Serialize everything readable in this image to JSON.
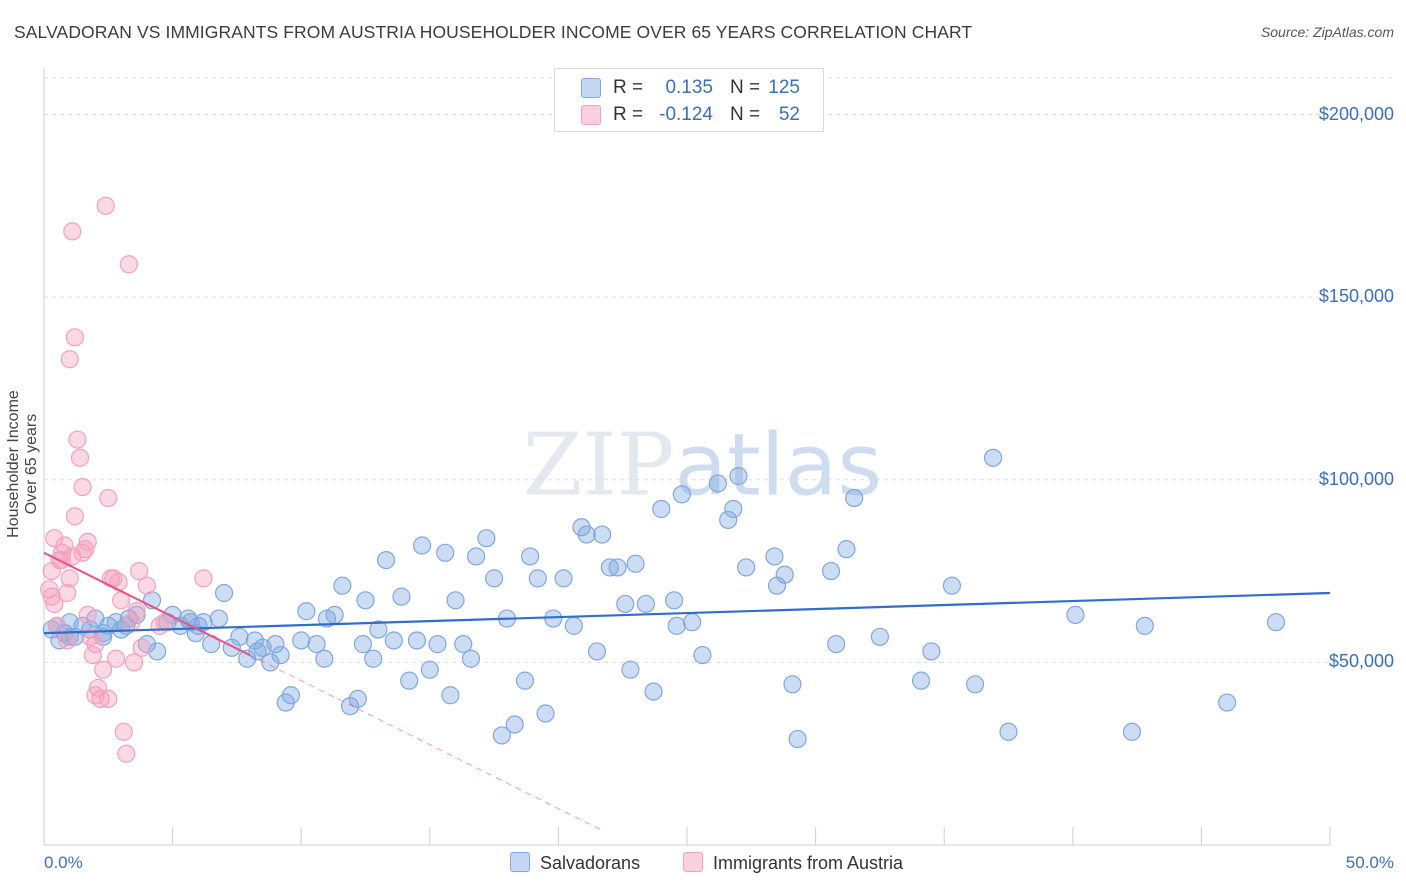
{
  "chart_data": {
    "type": "scatter",
    "title": "SALVADORAN VS IMMIGRANTS FROM AUSTRIA HOUSEHOLDER INCOME OVER 65 YEARS CORRELATION CHART",
    "source": "Source: ZipAtlas.com",
    "ylabel": "Householder Income Over 65 years",
    "xlim": [
      0,
      50
    ],
    "ylim": [
      0,
      210000
    ],
    "x_tick_labels": [
      "0.0%",
      "50.0%"
    ],
    "y_ticks": [
      50000,
      100000,
      150000,
      200000
    ],
    "y_tick_labels": [
      "$50,000",
      "$100,000",
      "$150,000",
      "$200,000"
    ],
    "watermark": "ZIPatlas",
    "legend": {
      "rows": [
        {
          "r_label": "R =",
          "r_value": "0.135",
          "n_label": "N =",
          "n_value": "125"
        },
        {
          "r_label": "R =",
          "r_value": "-0.124",
          "n_label": "N =",
          "n_value": "52"
        }
      ]
    },
    "series": [
      {
        "name": "Salvadorans",
        "color": "#7fa8e0",
        "line_color": "#2f6fc9",
        "trend": {
          "x0": 0,
          "y0": 58000,
          "x1": 50,
          "y1": 69000
        },
        "points": [
          [
            0.3,
            59000
          ],
          [
            0.5,
            60000
          ],
          [
            0.8,
            58000
          ],
          [
            1.0,
            61000
          ],
          [
            1.2,
            57000
          ],
          [
            1.5,
            60000
          ],
          [
            1.8,
            59000
          ],
          [
            2.0,
            62000
          ],
          [
            2.3,
            58000
          ],
          [
            2.5,
            60000
          ],
          [
            2.8,
            61000
          ],
          [
            3.0,
            59000
          ],
          [
            3.3,
            62000
          ],
          [
            3.6,
            63000
          ],
          [
            4.0,
            55000
          ],
          [
            4.2,
            67000
          ],
          [
            4.4,
            53000
          ],
          [
            4.8,
            61000
          ],
          [
            5.0,
            63000
          ],
          [
            5.3,
            60000
          ],
          [
            5.6,
            62000
          ],
          [
            5.9,
            58000
          ],
          [
            6.2,
            61000
          ],
          [
            6.5,
            55000
          ],
          [
            6.8,
            62000
          ],
          [
            7.0,
            69000
          ],
          [
            7.3,
            54000
          ],
          [
            7.6,
            57000
          ],
          [
            7.9,
            51000
          ],
          [
            8.2,
            56000
          ],
          [
            8.5,
            54000
          ],
          [
            8.8,
            50000
          ],
          [
            9.0,
            55000
          ],
          [
            9.4,
            39000
          ],
          [
            9.6,
            41000
          ],
          [
            10.0,
            56000
          ],
          [
            10.2,
            64000
          ],
          [
            10.6,
            55000
          ],
          [
            10.9,
            51000
          ],
          [
            11.0,
            62000
          ],
          [
            11.3,
            63000
          ],
          [
            11.6,
            71000
          ],
          [
            11.9,
            38000
          ],
          [
            12.2,
            40000
          ],
          [
            12.5,
            67000
          ],
          [
            12.8,
            51000
          ],
          [
            13.0,
            59000
          ],
          [
            13.3,
            78000
          ],
          [
            13.6,
            56000
          ],
          [
            13.9,
            68000
          ],
          [
            14.2,
            45000
          ],
          [
            14.5,
            56000
          ],
          [
            14.7,
            82000
          ],
          [
            15.0,
            48000
          ],
          [
            15.3,
            55000
          ],
          [
            15.6,
            80000
          ],
          [
            15.8,
            41000
          ],
          [
            16.0,
            67000
          ],
          [
            16.3,
            55000
          ],
          [
            16.6,
            51000
          ],
          [
            16.8,
            79000
          ],
          [
            17.2,
            84000
          ],
          [
            17.5,
            73000
          ],
          [
            17.8,
            30000
          ],
          [
            18.0,
            62000
          ],
          [
            18.3,
            33000
          ],
          [
            18.7,
            45000
          ],
          [
            18.9,
            79000
          ],
          [
            19.2,
            73000
          ],
          [
            19.5,
            36000
          ],
          [
            19.8,
            62000
          ],
          [
            20.2,
            73000
          ],
          [
            20.6,
            60000
          ],
          [
            20.9,
            87000
          ],
          [
            21.1,
            85000
          ],
          [
            21.5,
            53000
          ],
          [
            21.7,
            85000
          ],
          [
            22.0,
            76000
          ],
          [
            22.3,
            76000
          ],
          [
            22.6,
            66000
          ],
          [
            22.8,
            48000
          ],
          [
            23.0,
            77000
          ],
          [
            23.4,
            66000
          ],
          [
            23.7,
            42000
          ],
          [
            24.0,
            92000
          ],
          [
            24.5,
            67000
          ],
          [
            24.8,
            96000
          ],
          [
            24.6,
            60000
          ],
          [
            25.2,
            61000
          ],
          [
            25.6,
            52000
          ],
          [
            26.2,
            99000
          ],
          [
            26.6,
            89000
          ],
          [
            26.8,
            92000
          ],
          [
            27.0,
            101000
          ],
          [
            27.3,
            76000
          ],
          [
            28.4,
            79000
          ],
          [
            28.5,
            71000
          ],
          [
            28.8,
            74000
          ],
          [
            29.1,
            44000
          ],
          [
            29.3,
            29000
          ],
          [
            30.6,
            75000
          ],
          [
            30.8,
            55000
          ],
          [
            31.2,
            81000
          ],
          [
            31.5,
            95000
          ],
          [
            32.5,
            57000
          ],
          [
            34.1,
            45000
          ],
          [
            34.5,
            53000
          ],
          [
            35.3,
            71000
          ],
          [
            36.2,
            44000
          ],
          [
            36.9,
            106000
          ],
          [
            37.5,
            31000
          ],
          [
            40.1,
            63000
          ],
          [
            42.3,
            31000
          ],
          [
            42.8,
            60000
          ],
          [
            46.0,
            39000
          ],
          [
            47.9,
            61000
          ],
          [
            1.0,
            57000
          ],
          [
            2.3,
            57000
          ],
          [
            0.6,
            56000
          ],
          [
            3.2,
            60000
          ],
          [
            5.7,
            61000
          ],
          [
            6.0,
            60000
          ],
          [
            8.3,
            53000
          ],
          [
            9.2,
            52000
          ],
          [
            12.4,
            55000
          ]
        ]
      },
      {
        "name": "Immigrants from Austria",
        "color": "#f4a0bb",
        "line_color": "#e8578a",
        "trend": {
          "x0": 0,
          "y0": 80000,
          "x1": 8.0,
          "y1": 52000
        },
        "trend_ext": {
          "x0": 8.0,
          "y0": 52000,
          "x1": 21.7,
          "y1": 4000
        },
        "points": [
          [
            0.2,
            70000
          ],
          [
            0.3,
            75000
          ],
          [
            0.4,
            84000
          ],
          [
            0.5,
            60000
          ],
          [
            0.6,
            78000
          ],
          [
            0.7,
            80000
          ],
          [
            0.8,
            82000
          ],
          [
            0.9,
            56000
          ],
          [
            1.0,
            73000
          ],
          [
            1.1,
            79000
          ],
          [
            1.2,
            90000
          ],
          [
            1.3,
            111000
          ],
          [
            1.4,
            106000
          ],
          [
            1.5,
            98000
          ],
          [
            1.6,
            81000
          ],
          [
            1.7,
            63000
          ],
          [
            1.8,
            57000
          ],
          [
            1.9,
            52000
          ],
          [
            2.0,
            55000
          ],
          [
            2.1,
            43000
          ],
          [
            2.2,
            40000
          ],
          [
            2.3,
            48000
          ],
          [
            2.4,
            175000
          ],
          [
            2.5,
            95000
          ],
          [
            2.6,
            73000
          ],
          [
            2.7,
            73000
          ],
          [
            2.8,
            51000
          ],
          [
            2.9,
            72000
          ],
          [
            3.0,
            67000
          ],
          [
            3.1,
            31000
          ],
          [
            3.2,
            25000
          ],
          [
            3.3,
            159000
          ],
          [
            3.4,
            61000
          ],
          [
            3.5,
            50000
          ],
          [
            3.6,
            64000
          ],
          [
            3.7,
            75000
          ],
          [
            3.8,
            54000
          ],
          [
            4.0,
            71000
          ],
          [
            4.5,
            60000
          ],
          [
            4.7,
            61000
          ],
          [
            1.1,
            168000
          ],
          [
            1.2,
            139000
          ],
          [
            1.0,
            133000
          ],
          [
            0.3,
            68000
          ],
          [
            0.7,
            78000
          ],
          [
            0.9,
            69000
          ],
          [
            1.5,
            80000
          ],
          [
            2.0,
            41000
          ],
          [
            2.5,
            40000
          ],
          [
            6.2,
            73000
          ],
          [
            0.4,
            66000
          ],
          [
            1.7,
            83000
          ]
        ]
      }
    ]
  }
}
